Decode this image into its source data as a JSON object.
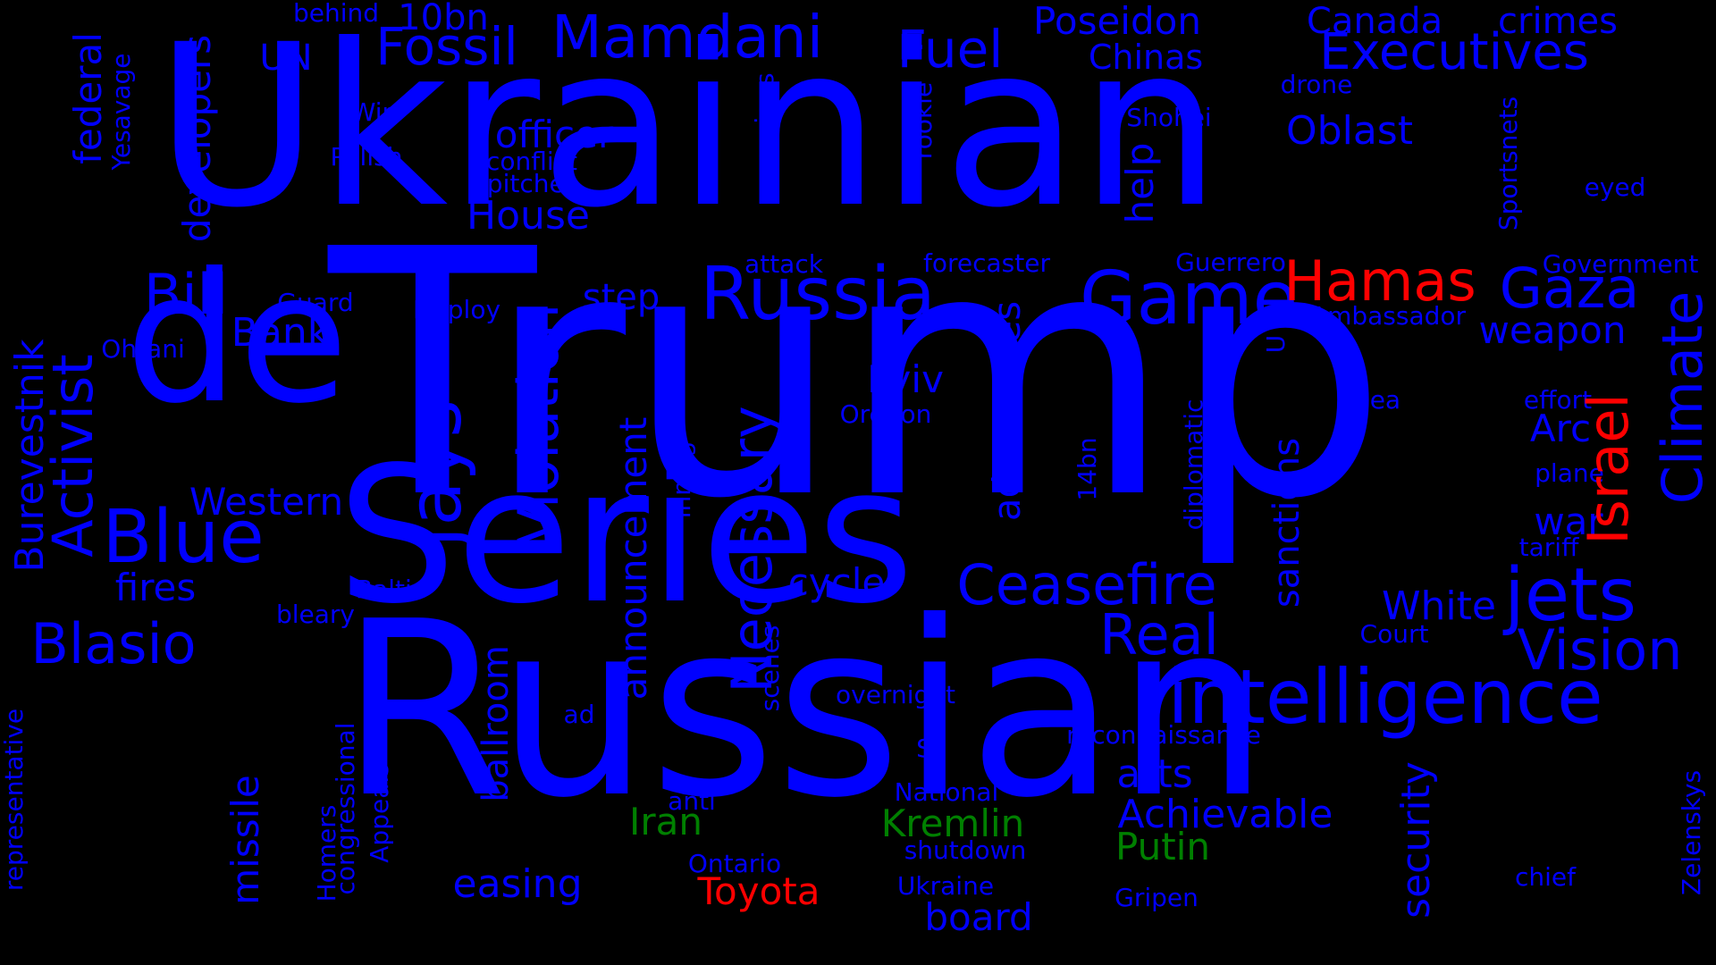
{
  "colors": {
    "background": "#000000",
    "blue": "#0000ff",
    "red": "#ff0000",
    "green": "#008000"
  },
  "words": [
    {
      "text": "Ukrainian",
      "color": "blue"
    },
    {
      "text": "Trump",
      "color": "blue"
    },
    {
      "text": "Russian",
      "color": "blue"
    },
    {
      "text": "Series",
      "color": "blue"
    },
    {
      "text": "de",
      "color": "blue"
    },
    {
      "text": "intelligence",
      "color": "blue"
    },
    {
      "text": "Russia",
      "color": "blue"
    },
    {
      "text": "Game",
      "color": "blue"
    },
    {
      "text": "Hamas",
      "color": "red"
    },
    {
      "text": "Gaza",
      "color": "blue"
    },
    {
      "text": "Blue",
      "color": "blue"
    },
    {
      "text": "Jays",
      "color": "blue"
    },
    {
      "text": "Fossil",
      "color": "blue"
    },
    {
      "text": "Mamdani",
      "color": "blue"
    },
    {
      "text": "Fuel",
      "color": "blue"
    },
    {
      "text": "Executives",
      "color": "blue"
    },
    {
      "text": "Poseidon",
      "color": "blue"
    },
    {
      "text": "Canada",
      "color": "blue"
    },
    {
      "text": "crimes",
      "color": "blue"
    },
    {
      "text": "Chinas",
      "color": "blue"
    },
    {
      "text": "behind",
      "color": "blue"
    },
    {
      "text": "10bn",
      "color": "blue"
    },
    {
      "text": "UN",
      "color": "blue"
    },
    {
      "text": "Oblast",
      "color": "blue"
    },
    {
      "text": "officer",
      "color": "blue"
    },
    {
      "text": "conflict",
      "color": "blue"
    },
    {
      "text": "pitcher",
      "color": "blue"
    },
    {
      "text": "House",
      "color": "blue"
    },
    {
      "text": "Win",
      "color": "blue"
    },
    {
      "text": "Polish",
      "color": "blue"
    },
    {
      "text": "Shohei",
      "color": "blue"
    },
    {
      "text": "drone",
      "color": "blue"
    },
    {
      "text": "eyed",
      "color": "blue"
    },
    {
      "text": "Bill",
      "color": "blue"
    },
    {
      "text": "Bank",
      "color": "blue"
    },
    {
      "text": "Guard",
      "color": "blue"
    },
    {
      "text": "Deploy",
      "color": "blue"
    },
    {
      "text": "Ohtani",
      "color": "blue"
    },
    {
      "text": "attack",
      "color": "blue"
    },
    {
      "text": "forecaster",
      "color": "blue"
    },
    {
      "text": "Guerrero",
      "color": "blue"
    },
    {
      "text": "Government",
      "color": "blue"
    },
    {
      "text": "step",
      "color": "blue"
    },
    {
      "text": "Ambassador",
      "color": "blue"
    },
    {
      "text": "weapon",
      "color": "blue"
    },
    {
      "text": "Kyiv",
      "color": "blue"
    },
    {
      "text": "Oregon",
      "color": "blue"
    },
    {
      "text": "Sea",
      "color": "blue"
    },
    {
      "text": "effort",
      "color": "blue"
    },
    {
      "text": "Arc",
      "color": "blue"
    },
    {
      "text": "plane",
      "color": "blue"
    },
    {
      "text": "war",
      "color": "blue"
    },
    {
      "text": "tariff",
      "color": "blue"
    },
    {
      "text": "Western",
      "color": "blue"
    },
    {
      "text": "fires",
      "color": "blue"
    },
    {
      "text": "Baltic",
      "color": "blue"
    },
    {
      "text": "bleary",
      "color": "blue"
    },
    {
      "text": "Blasio",
      "color": "blue"
    },
    {
      "text": "Ceasefire",
      "color": "blue"
    },
    {
      "text": "cycle",
      "color": "blue"
    },
    {
      "text": "White",
      "color": "blue"
    },
    {
      "text": "jets",
      "color": "blue"
    },
    {
      "text": "Court",
      "color": "blue"
    },
    {
      "text": "Real",
      "color": "blue"
    },
    {
      "text": "Vision",
      "color": "blue"
    },
    {
      "text": "overnight",
      "color": "blue"
    },
    {
      "text": "ad",
      "color": "blue"
    },
    {
      "text": "reconnaissance",
      "color": "blue"
    },
    {
      "text": "S",
      "color": "blue"
    },
    {
      "text": "arts",
      "color": "blue"
    },
    {
      "text": "National",
      "color": "blue"
    },
    {
      "text": "anti",
      "color": "blue"
    },
    {
      "text": "Iran",
      "color": "green"
    },
    {
      "text": "Kremlin",
      "color": "green"
    },
    {
      "text": "Achievable",
      "color": "blue"
    },
    {
      "text": "Putin",
      "color": "green"
    },
    {
      "text": "shutdown",
      "color": "blue"
    },
    {
      "text": "Ontario",
      "color": "blue"
    },
    {
      "text": "easing",
      "color": "blue"
    },
    {
      "text": "Toyota",
      "color": "red"
    },
    {
      "text": "Ukraine",
      "color": "blue"
    },
    {
      "text": "chief",
      "color": "blue"
    },
    {
      "text": "board",
      "color": "blue"
    },
    {
      "text": "Gripen",
      "color": "blue"
    },
    {
      "text": "federal",
      "color": "blue"
    },
    {
      "text": "Yesavage",
      "color": "blue"
    },
    {
      "text": "developers",
      "color": "blue"
    },
    {
      "text": "regions",
      "color": "blue"
    },
    {
      "text": "rookie",
      "color": "blue"
    },
    {
      "text": "help",
      "color": "blue"
    },
    {
      "text": "Sportsnets",
      "color": "blue"
    },
    {
      "text": "Climate",
      "color": "blue"
    },
    {
      "text": "Israel",
      "color": "red"
    },
    {
      "text": "Burevestnik",
      "color": "blue"
    },
    {
      "text": "Activist",
      "color": "blue"
    },
    {
      "text": "Violation",
      "color": "blue"
    },
    {
      "text": "Necessary",
      "color": "blue"
    },
    {
      "text": "advantages",
      "color": "blue"
    },
    {
      "text": "U",
      "color": "blue"
    },
    {
      "text": "diplomatic",
      "color": "blue"
    },
    {
      "text": "14bn",
      "color": "blue"
    },
    {
      "text": "sanctions",
      "color": "blue"
    },
    {
      "text": "announcement",
      "color": "blue"
    },
    {
      "text": "inning",
      "color": "blue"
    },
    {
      "text": "ballroom",
      "color": "blue"
    },
    {
      "text": "scenes",
      "color": "blue"
    },
    {
      "text": "missile",
      "color": "blue"
    },
    {
      "text": "representative",
      "color": "blue"
    },
    {
      "text": "congressional",
      "color": "blue"
    },
    {
      "text": "Homers",
      "color": "blue"
    },
    {
      "text": "Appeals",
      "color": "blue"
    },
    {
      "text": "security",
      "color": "blue"
    },
    {
      "text": "Zelenskys",
      "color": "blue"
    }
  ]
}
